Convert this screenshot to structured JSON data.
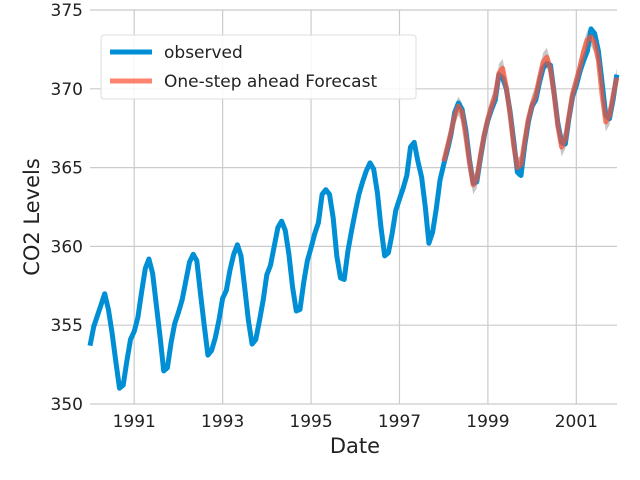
{
  "chart_data": {
    "type": "line",
    "xlabel": "Date",
    "ylabel": "CO2 Levels",
    "xlim": [
      1990.0,
      2001.92
    ],
    "ylim": [
      350,
      375
    ],
    "x_ticks": [
      1991,
      1993,
      1995,
      1997,
      1999,
      2001
    ],
    "x_tick_labels": [
      "1991",
      "1993",
      "1995",
      "1997",
      "1999",
      "2001"
    ],
    "y_ticks": [
      350,
      355,
      360,
      365,
      370,
      375
    ],
    "y_tick_labels": [
      "350",
      "355",
      "360",
      "365",
      "370",
      "375"
    ],
    "grid": true,
    "legend_position": "top-left",
    "series": [
      {
        "name": "observed",
        "color": "#008fd5",
        "x_start": 1990.0,
        "step": 0.08333,
        "values": [
          353.7,
          354.9,
          355.6,
          356.3,
          357.0,
          356.0,
          354.5,
          352.7,
          351.0,
          351.2,
          352.7,
          354.1,
          354.6,
          355.5,
          357.1,
          358.6,
          359.2,
          358.3,
          356.3,
          354.3,
          352.1,
          352.3,
          353.9,
          355.1,
          355.8,
          356.6,
          357.8,
          359.0,
          359.5,
          359.1,
          357.0,
          355.0,
          353.1,
          353.4,
          354.2,
          355.3,
          356.7,
          357.2,
          358.5,
          359.5,
          360.1,
          359.4,
          357.4,
          355.3,
          353.8,
          354.1,
          355.3,
          356.6,
          358.2,
          358.8,
          360.0,
          361.2,
          361.6,
          361.0,
          359.5,
          357.4,
          355.9,
          356.0,
          357.7,
          359.1,
          359.9,
          360.8,
          361.5,
          363.3,
          363.6,
          363.3,
          361.8,
          359.4,
          358.0,
          357.9,
          359.7,
          361.0,
          362.2,
          363.3,
          364.1,
          364.8,
          365.3,
          364.9,
          363.4,
          361.2,
          359.4,
          359.6,
          360.8,
          362.3,
          363.0,
          363.7,
          364.5,
          366.3,
          366.6,
          365.4,
          364.4,
          362.5,
          360.2,
          360.9,
          362.4,
          364.2,
          365.2,
          366.1,
          367.1,
          368.5,
          369.1,
          368.7,
          367.4,
          365.5,
          364.0,
          364.1,
          365.6,
          367.0,
          368.0,
          368.7,
          369.3,
          370.9,
          370.7,
          370.0,
          368.6,
          366.7,
          364.7,
          364.5,
          366.4,
          367.9,
          368.9,
          369.3,
          370.4,
          371.3,
          371.6,
          371.5,
          369.7,
          367.8,
          366.6,
          366.5,
          368.1,
          369.5,
          370.2,
          371.1,
          371.8,
          372.4,
          373.8,
          373.5,
          372.4,
          370.4,
          368.3,
          368.1,
          369.3,
          370.9
        ]
      },
      {
        "name": "One-step ahead Forecast",
        "color": "#fc4f30",
        "x_start": 1998.0,
        "step": 0.08333,
        "values": [
          365.4,
          366.3,
          367.3,
          368.3,
          368.9,
          368.5,
          367.0,
          365.3,
          363.9,
          364.3,
          365.8,
          367.1,
          368.1,
          368.9,
          369.6,
          371.0,
          371.3,
          370.1,
          368.4,
          366.4,
          365.0,
          365.2,
          366.7,
          368.1,
          369.0,
          369.6,
          370.7,
          371.7,
          372.0,
          371.2,
          369.6,
          367.6,
          366.3,
          366.8,
          368.3,
          369.7,
          370.5,
          371.4,
          372.4,
          373.1,
          373.3,
          372.9,
          371.8,
          369.6,
          367.9,
          368.3,
          369.6,
          370.7
        ],
        "confidence_band": true,
        "band_halfwidth": 0.6
      }
    ]
  },
  "colors": {
    "background": "#ffffff",
    "plot_background": "#ffffff",
    "grid": "#cbcbcb",
    "band": "#999999",
    "text": "#222222"
  }
}
